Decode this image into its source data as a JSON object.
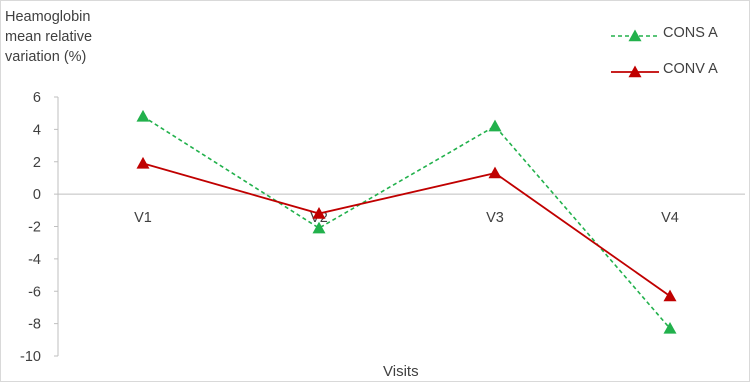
{
  "chart_data": {
    "type": "line",
    "ylabel": [
      "Heamoglobin",
      "mean relative",
      "variation (%)"
    ],
    "xlabel": "Visits",
    "categories": [
      "V1",
      "V2",
      "V3",
      "V4"
    ],
    "ylim": [
      -10,
      6
    ],
    "yticks": [
      6,
      4,
      2,
      0,
      -2,
      -4,
      -6,
      -8,
      -10
    ],
    "series": [
      {
        "name": "CONS A",
        "values": [
          4.8,
          -2.1,
          4.2,
          -8.3
        ],
        "color": "#22b14c",
        "style": "dashed",
        "marker": "triangle"
      },
      {
        "name": "CONV A",
        "values": [
          1.9,
          -1.2,
          1.3,
          -6.3
        ],
        "color": "#c00000",
        "style": "solid",
        "marker": "triangle"
      }
    ],
    "legend_position": "top-right",
    "grid": false
  }
}
